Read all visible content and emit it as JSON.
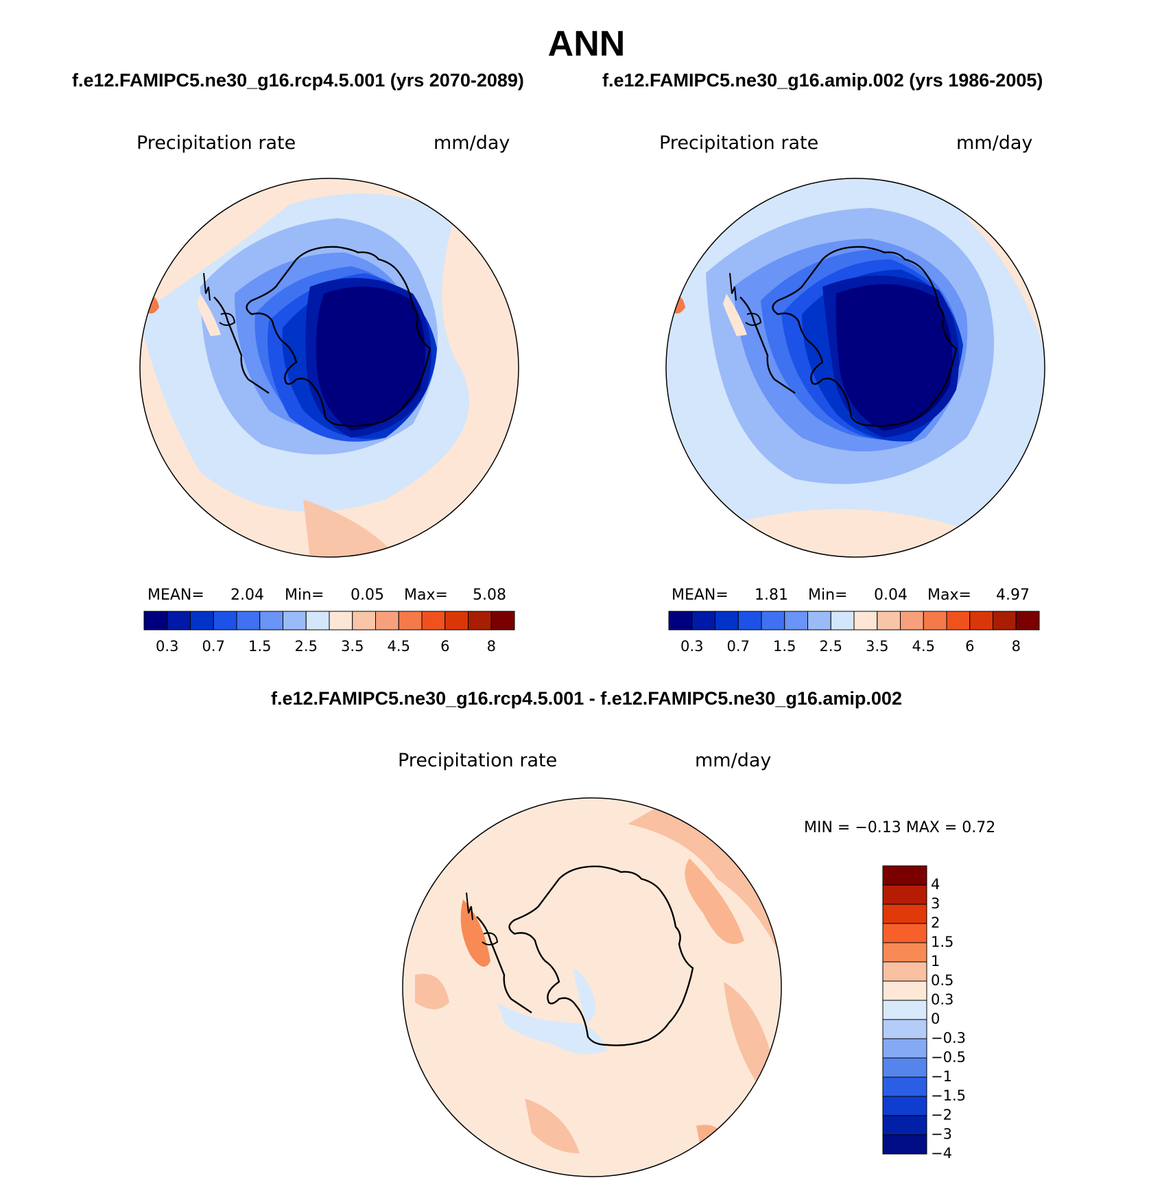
{
  "header": {
    "title": "ANN",
    "left_case": "f.e12.FAMIPC5.ne30_g16.rcp4.5.001 (yrs 2070-2089)",
    "right_case": "f.e12.FAMIPC5.ne30_g16.amip.002 (yrs 1986-2005)",
    "diff_title": "f.e12.FAMIPC5.ne30_g16.rcp4.5.001 - f.e12.FAMIPC5.ne30_g16.amip.002"
  },
  "panels": [
    {
      "variable": "Precipitation rate",
      "units": "mm/day",
      "mean_label": "MEAN=",
      "mean": "2.04",
      "min_label": "Min=",
      "min": "0.05",
      "max_label": "Max=",
      "max": "5.08"
    },
    {
      "variable": "Precipitation rate",
      "units": "mm/day",
      "mean_label": "MEAN=",
      "mean": "1.81",
      "min_label": "Min=",
      "min": "0.04",
      "max_label": "Max=",
      "max": "4.97"
    }
  ],
  "abs_colorbar": {
    "colors": [
      "#00007f",
      "#0019a6",
      "#0034c8",
      "#1c52e8",
      "#3f72f0",
      "#6a94f5",
      "#9bbaf8",
      "#d3e6fb",
      "#fde6d6",
      "#f9c5a8",
      "#f6a17c",
      "#f47a4a",
      "#f0521e",
      "#d93708",
      "#a81e03",
      "#7a0000"
    ],
    "labels": [
      "0.3",
      "0.7",
      "1.5",
      "2.5",
      "3.5",
      "4.5",
      "6",
      "8"
    ]
  },
  "diff_panel": {
    "variable": "Precipitation rate",
    "units": "mm/day",
    "minmax_text": "MIN =   −0.13 MAX =    0.72"
  },
  "diff_colorbar": {
    "colors": [
      "#7a0000",
      "#b51c03",
      "#e0390a",
      "#f7602a",
      "#f78a55",
      "#f9c0a2",
      "#fde8d8",
      "#d8e9fb",
      "#b3cdf8",
      "#86a9f3",
      "#5584ec",
      "#2a5fe5",
      "#0f3dd0",
      "#0020a8",
      "#000d85"
    ],
    "labels": [
      "4",
      "3",
      "2",
      "1.5",
      "1",
      "0.5",
      "0.3",
      "0",
      "−0.3",
      "−0.5",
      "−1",
      "−1.5",
      "−2",
      "−3",
      "−4"
    ]
  }
}
